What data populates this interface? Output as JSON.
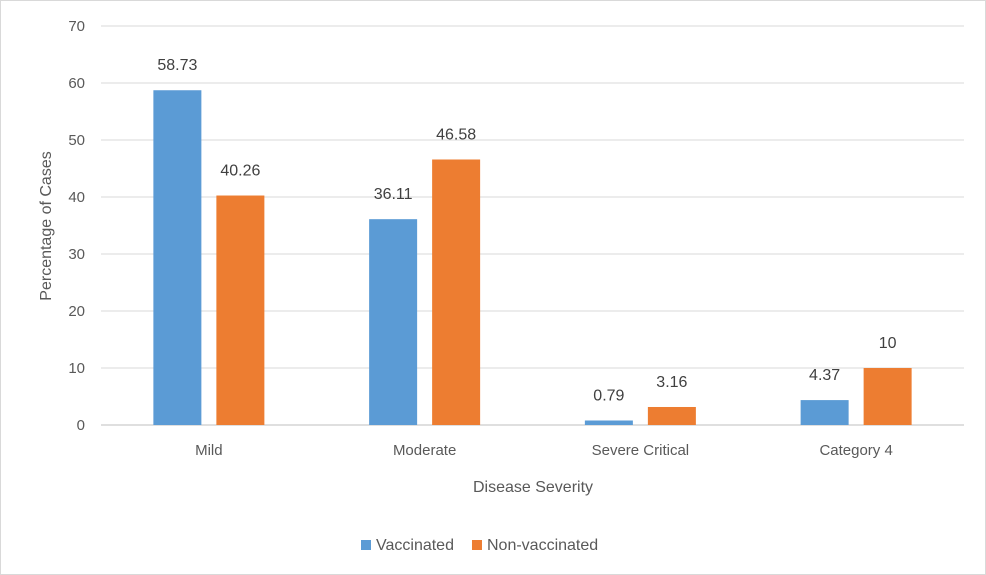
{
  "chart_data": {
    "type": "bar",
    "categories": [
      "Mild",
      "Moderate",
      "Severe Critical",
      "Category 4"
    ],
    "series": [
      {
        "name": "Vaccinated",
        "values": [
          58.73,
          36.11,
          0.79,
          4.37
        ],
        "color": "#5b9bd5"
      },
      {
        "name": "Non-vaccinated",
        "values": [
          40.26,
          46.58,
          3.16,
          10
        ],
        "color": "#ed7d31"
      }
    ],
    "data_labels": [
      [
        "58.73",
        "36.11",
        "0.79",
        "4.37"
      ],
      [
        "40.26",
        "46.58",
        "3.16",
        "10"
      ]
    ],
    "xlabel": "Disease Severity",
    "ylabel": "Percentage of Cases",
    "ylim": [
      0,
      70
    ],
    "yticks": [
      0,
      10,
      20,
      30,
      40,
      50,
      60,
      70
    ],
    "grid": true,
    "legend_position": "bottom"
  }
}
